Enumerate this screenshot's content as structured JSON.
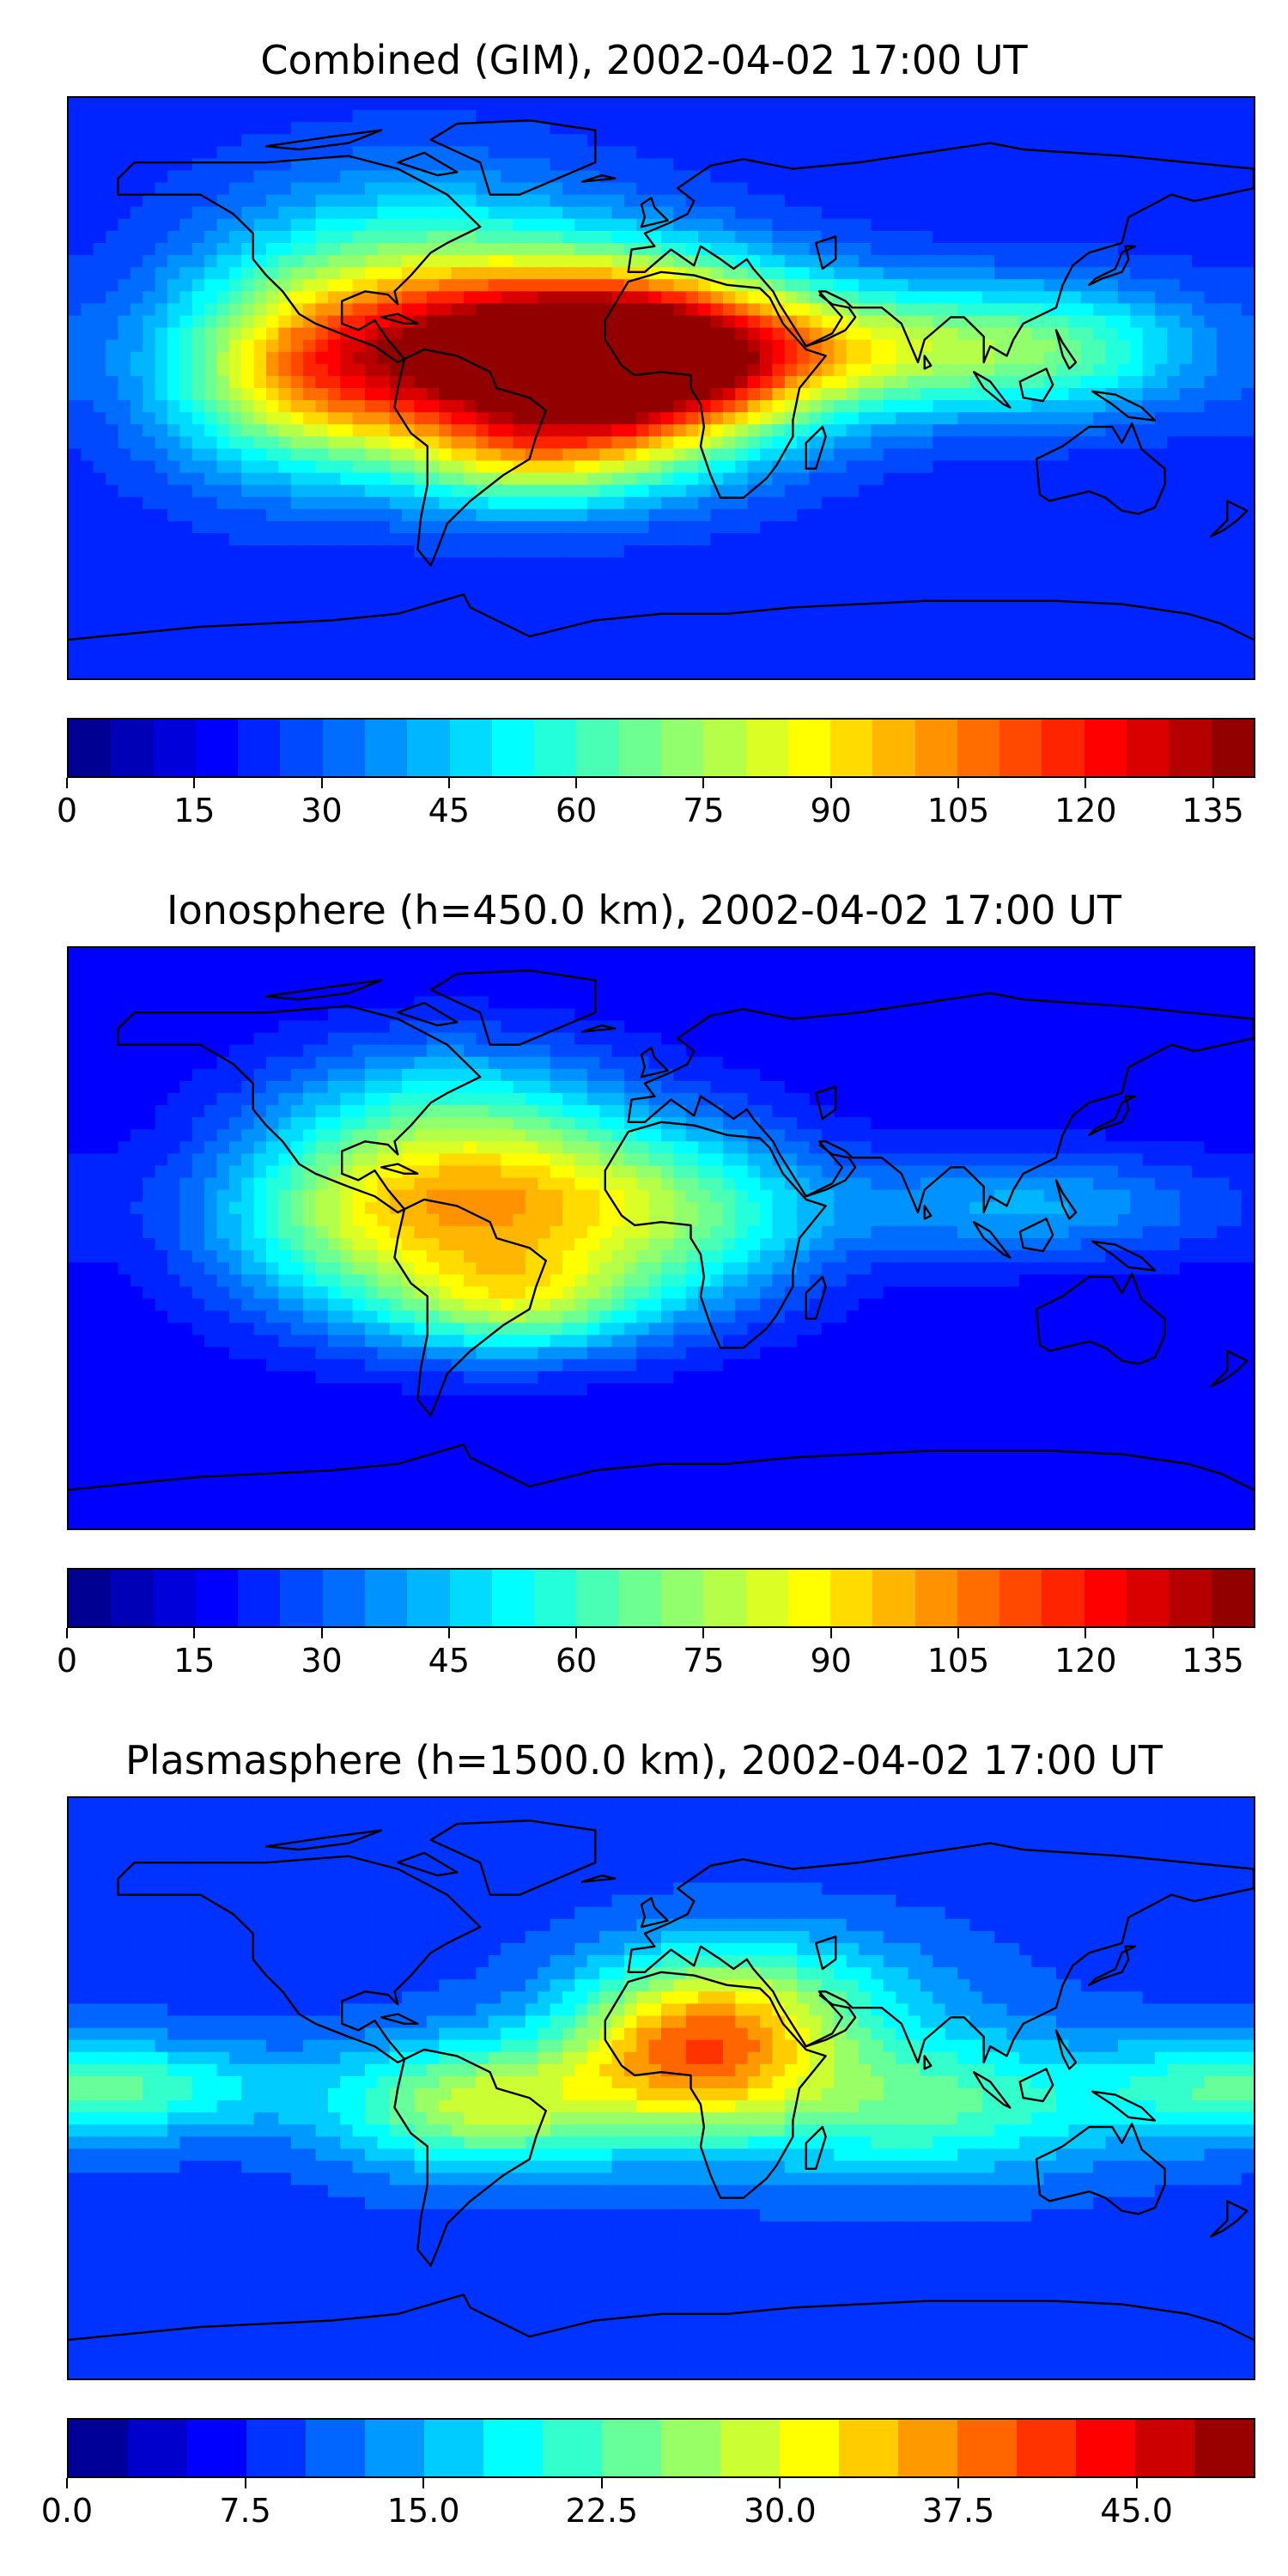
{
  "panels": [
    {
      "title": "Combined (GIM), 2002-04-02 17:00 UT",
      "vmax": 140,
      "background": "#1a3cff",
      "levels": 28,
      "ticks": [
        "0",
        "15",
        "30",
        "45",
        "60",
        "75",
        "90",
        "105",
        "120",
        "135"
      ],
      "tick_values": [
        0,
        15,
        30,
        45,
        60,
        75,
        90,
        105,
        120,
        135
      ],
      "field": {
        "base": 22,
        "blobs": [
          {
            "lon": -45,
            "lat": 10,
            "amp": 108,
            "slon": 42,
            "slat": 20
          },
          {
            "lon": -110,
            "lat": 5,
            "amp": 55,
            "slon": 30,
            "slat": 22
          },
          {
            "lon": 0,
            "lat": 8,
            "amp": 78,
            "slon": 32,
            "slat": 20
          },
          {
            "lon": 60,
            "lat": 12,
            "amp": 50,
            "slon": 42,
            "slat": 14
          },
          {
            "lon": 125,
            "lat": 12,
            "amp": 30,
            "slon": 30,
            "slat": 14
          },
          {
            "lon": -40,
            "lat": -22,
            "amp": 35,
            "slon": 28,
            "slat": 12
          },
          {
            "lon": -75,
            "lat": 45,
            "amp": 22,
            "slon": 40,
            "slat": 20
          }
        ]
      }
    },
    {
      "title": "Ionosphere  (h=450.0 km), 2002-04-02 17:00 UT",
      "vmax": 140,
      "background": "#1a3cff",
      "levels": 28,
      "ticks": [
        "0",
        "15",
        "30",
        "45",
        "60",
        "75",
        "90",
        "105",
        "120",
        "135"
      ],
      "tick_values": [
        0,
        15,
        30,
        45,
        60,
        75,
        90,
        105,
        120,
        135
      ],
      "field": {
        "base": 16,
        "blobs": [
          {
            "lon": -50,
            "lat": 12,
            "amp": 72,
            "slon": 40,
            "slat": 20
          },
          {
            "lon": -45,
            "lat": -20,
            "amp": 45,
            "slon": 28,
            "slat": 12
          },
          {
            "lon": -100,
            "lat": 5,
            "amp": 30,
            "slon": 30,
            "slat": 22
          },
          {
            "lon": 10,
            "lat": 5,
            "amp": 30,
            "slon": 30,
            "slat": 20
          },
          {
            "lon": 110,
            "lat": 10,
            "amp": 25,
            "slon": 45,
            "slat": 12
          },
          {
            "lon": -65,
            "lat": 45,
            "amp": 20,
            "slon": 35,
            "slat": 15
          }
        ]
      }
    },
    {
      "title": "Plasmasphere (h=1500.0 km), 2002-04-02 17:00 UT",
      "vmax": 50,
      "background": "#1a3cff",
      "levels": 20,
      "ticks": [
        "0.0",
        "7.5",
        "15.0",
        "22.5",
        "30.0",
        "37.5",
        "45.0"
      ],
      "tick_values": [
        0,
        7.5,
        15,
        22.5,
        30,
        37.5,
        45
      ],
      "field": {
        "base": 9,
        "blobs": [
          {
            "lon": 10,
            "lat": 12,
            "amp": 26,
            "slon": 28,
            "slat": 18
          },
          {
            "lon": -55,
            "lat": -5,
            "amp": 19,
            "slon": 32,
            "slat": 14
          },
          {
            "lon": 80,
            "lat": -5,
            "amp": 14,
            "slon": 40,
            "slat": 16
          },
          {
            "lon": 40,
            "lat": 30,
            "amp": 8,
            "slon": 35,
            "slat": 15
          },
          {
            "lon": -150,
            "lat": 0,
            "amp": 8,
            "slon": 30,
            "slat": 10
          },
          {
            "lon": 170,
            "lat": 0,
            "amp": 10,
            "slon": 30,
            "slat": 12
          }
        ]
      }
    }
  ]
}
